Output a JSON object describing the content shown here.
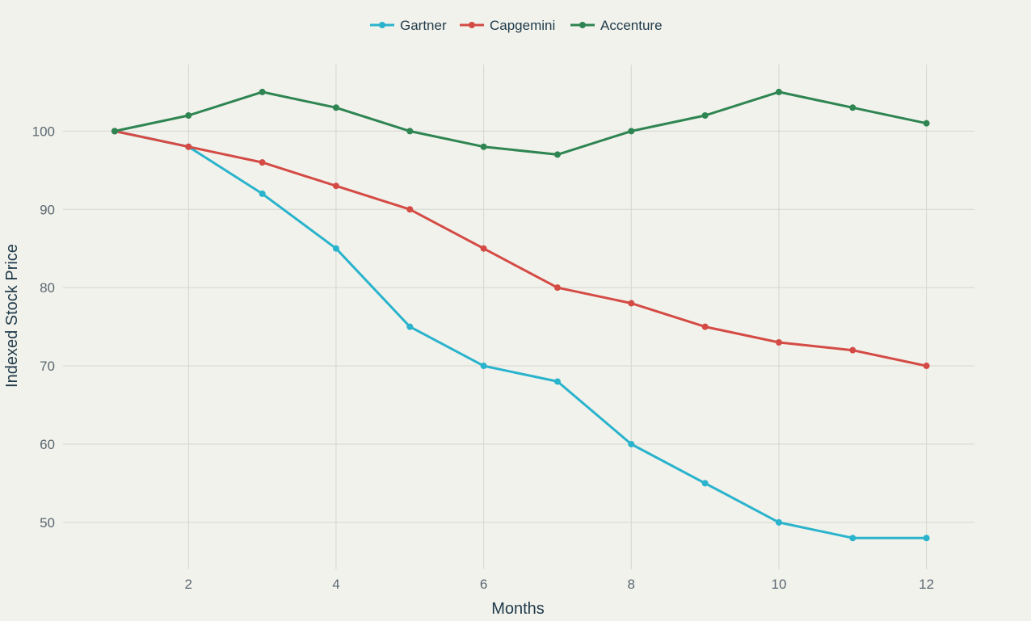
{
  "chart_data": {
    "type": "line",
    "title": "",
    "xlabel": "Months",
    "ylabel": "Indexed Stock Price",
    "x": [
      1,
      2,
      3,
      4,
      5,
      6,
      7,
      8,
      9,
      10,
      11,
      12
    ],
    "xlim": [
      0.3,
      12.65
    ],
    "ylim": [
      44,
      108.5
    ],
    "xticks": [
      2,
      4,
      6,
      8,
      10,
      12
    ],
    "yticks": [
      50,
      60,
      70,
      80,
      90,
      100
    ],
    "grid": true,
    "legend_position": "top-center",
    "series": [
      {
        "name": "Gartner",
        "color": "#2ab3cc",
        "values": [
          100,
          98,
          92,
          85,
          75,
          70,
          68,
          60,
          55,
          50,
          48,
          48
        ]
      },
      {
        "name": "Capgemini",
        "color": "#d44b45",
        "values": [
          100,
          98,
          96,
          93,
          90,
          85,
          80,
          78,
          75,
          73,
          72,
          70
        ]
      },
      {
        "name": "Accenture",
        "color": "#2e8551",
        "values": [
          100,
          102,
          105,
          103,
          100,
          98,
          97,
          100,
          102,
          105,
          103,
          101
        ]
      }
    ]
  }
}
